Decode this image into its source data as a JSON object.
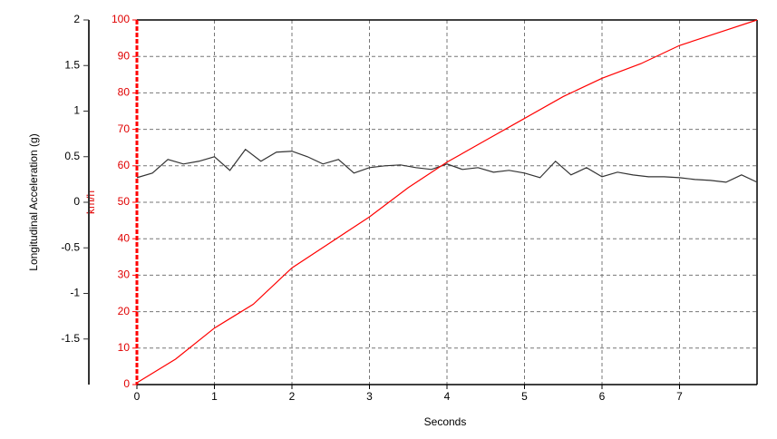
{
  "chart_data": {
    "type": "line",
    "x_label": "Seconds",
    "y_label": "Longitudinal Acceleration (g)",
    "y2_label": "km/h",
    "xlim": [
      0,
      8
    ],
    "xticks": [
      0,
      1,
      2,
      3,
      4,
      5,
      6,
      7
    ],
    "ylim": [
      -2,
      2
    ],
    "yticks": [
      -1.5,
      -1,
      -0.5,
      0,
      0.5,
      1,
      1.5,
      2
    ],
    "y2lim": [
      0,
      100
    ],
    "y2ticks": [
      0,
      10,
      20,
      30,
      40,
      50,
      60,
      70,
      80,
      90,
      100
    ],
    "grid": true,
    "series": [
      {
        "color": "#333333",
        "x": [
          0,
          0.2,
          0.4,
          0.6,
          0.8,
          1.0,
          1.2,
          1.4,
          1.6,
          1.8,
          2.0,
          2.2,
          2.4,
          2.6,
          2.8,
          3.0,
          3.2,
          3.4,
          3.6,
          3.8,
          4.0,
          4.2,
          4.4,
          4.6,
          4.8,
          5.0,
          5.2,
          5.4,
          5.6,
          5.8,
          6.0,
          6.2,
          6.4,
          6.6,
          6.8,
          7.0,
          7.2,
          7.4,
          7.6,
          7.8,
          8.0
        ],
        "values": [
          0.27,
          0.32,
          0.47,
          0.42,
          0.45,
          0.5,
          0.35,
          0.58,
          0.45,
          0.55,
          0.56,
          0.5,
          0.42,
          0.47,
          0.32,
          0.38,
          0.4,
          0.41,
          0.38,
          0.36,
          0.42,
          0.36,
          0.38,
          0.33,
          0.35,
          0.32,
          0.27,
          0.45,
          0.3,
          0.38,
          0.28,
          0.33,
          0.3,
          0.28,
          0.28,
          0.27,
          0.25,
          0.24,
          0.22,
          0.3,
          0.22
        ]
      },
      {
        "color": "#ff0000",
        "axis": "y2",
        "x": [
          0,
          0.5,
          1.0,
          1.5,
          2.0,
          2.5,
          3.0,
          3.5,
          4.0,
          4.5,
          5.0,
          5.5,
          6.0,
          6.5,
          7.0,
          7.5,
          8.0
        ],
        "values": [
          0.5,
          7,
          15.5,
          22,
          32,
          39,
          46,
          54,
          61,
          67,
          73,
          79,
          84,
          88,
          93,
          96.5,
          100
        ]
      }
    ]
  }
}
